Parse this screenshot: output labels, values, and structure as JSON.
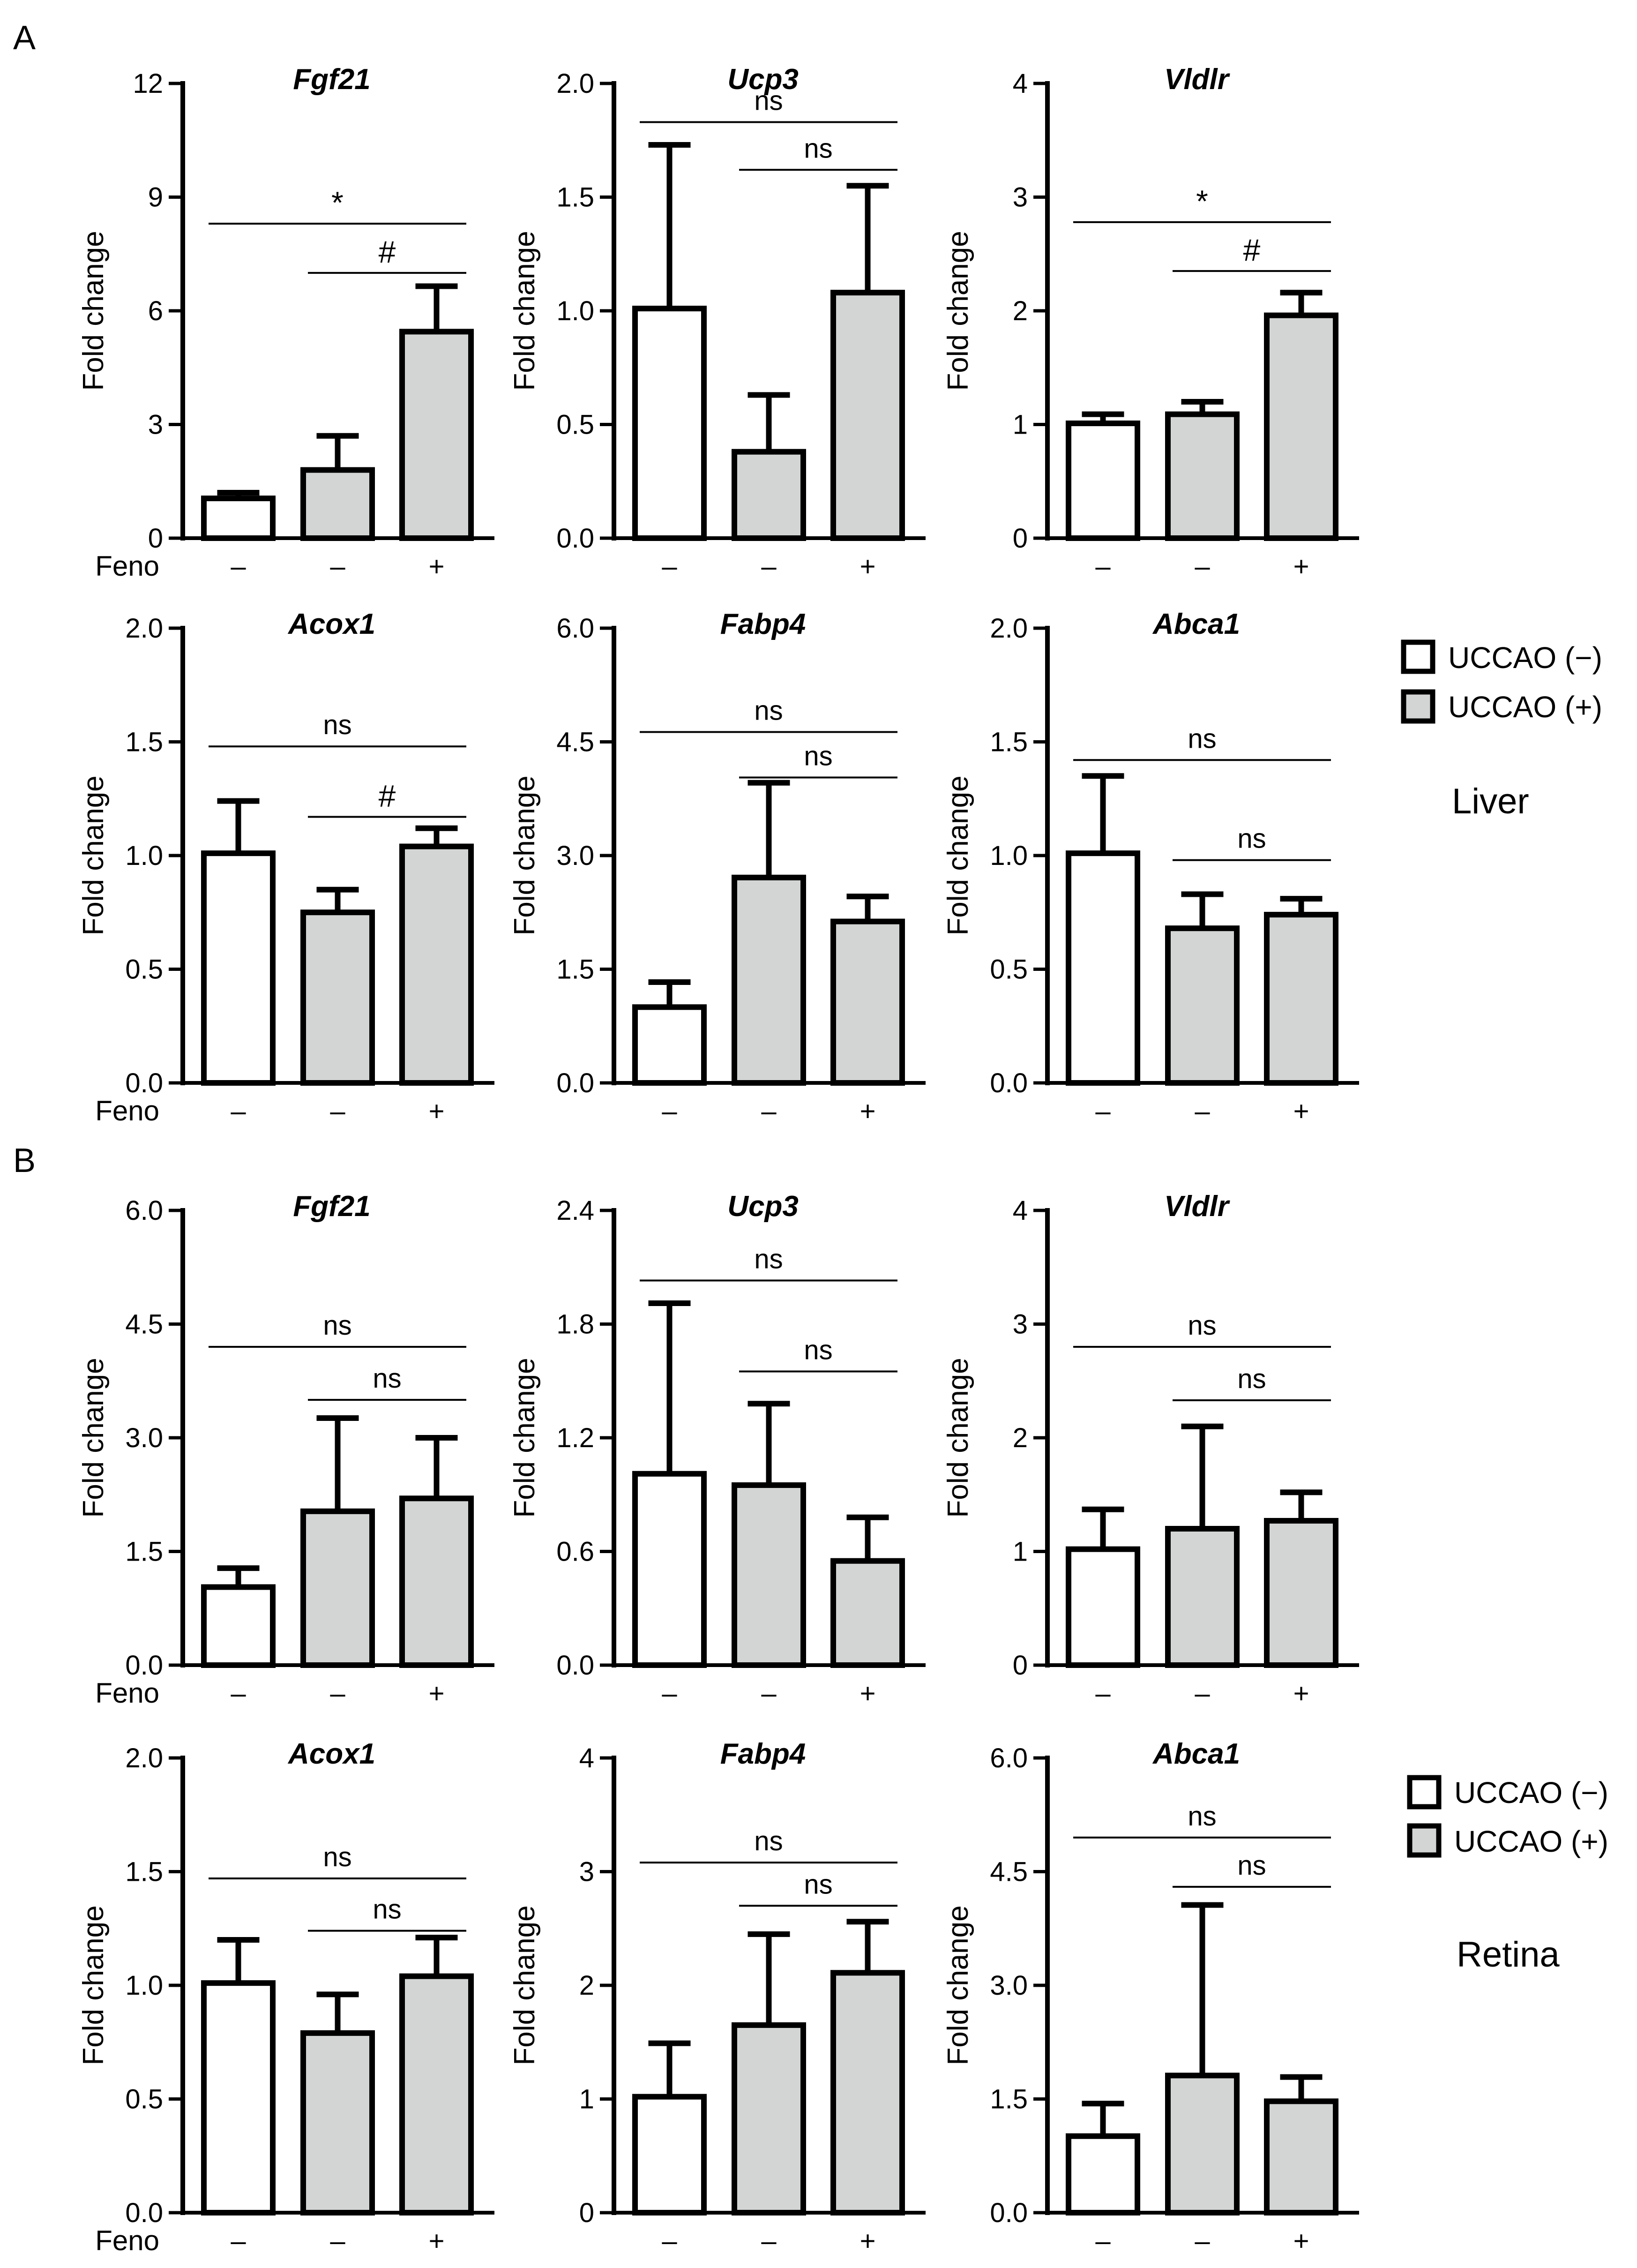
{
  "panel_labels": [
    "A",
    "B"
  ],
  "row_label": "Feno",
  "treatment_symbols": [
    "–",
    "–",
    "+"
  ],
  "colors": {
    "uccao_neg": "#ffffff",
    "uccao_pos": "#d3d5d5",
    "stroke": "#000000"
  },
  "legends": [
    {
      "tissue": "Liver",
      "entries": [
        "UCCAO (−)",
        "UCCAO (+)"
      ]
    },
    {
      "tissue": "Retina",
      "entries": [
        "UCCAO (−)",
        "UCCAO (+)"
      ]
    }
  ],
  "chart_data": [
    {
      "type": "bar",
      "section": "A",
      "tissue": "Liver",
      "title": "Fgf21",
      "ylabel": "Fold change",
      "ylim": [
        0,
        12
      ],
      "yticks": [
        0,
        3,
        6,
        9,
        12
      ],
      "ytick_labels": [
        "0",
        "3",
        "6",
        "9",
        "12"
      ],
      "categories": [
        "UCCAO(-) Feno-",
        "UCCAO(+) Feno-",
        "UCCAO(+) Feno+"
      ],
      "values": [
        1.05,
        1.8,
        5.45
      ],
      "errors": [
        0.15,
        0.9,
        1.2
      ],
      "feno_row_label": true,
      "annotations": [
        {
          "from": 0,
          "to": 2,
          "text": "*",
          "level": 8.3
        },
        {
          "from": 1,
          "to": 2,
          "text": "#",
          "level": 7.0
        }
      ]
    },
    {
      "type": "bar",
      "section": "A",
      "tissue": "Liver",
      "title": "Ucp3",
      "ylabel": "Fold change",
      "ylim": [
        0,
        2.0
      ],
      "yticks": [
        0,
        0.5,
        1.0,
        1.5,
        2.0
      ],
      "ytick_labels": [
        "0.0",
        "0.5",
        "1.0",
        "1.5",
        "2.0"
      ],
      "categories": [
        "UCCAO(-) Feno-",
        "UCCAO(+) Feno-",
        "UCCAO(+) Feno+"
      ],
      "values": [
        1.01,
        0.38,
        1.08
      ],
      "errors": [
        0.72,
        0.25,
        0.47
      ],
      "feno_row_label": false,
      "annotations": [
        {
          "from": 0,
          "to": 2,
          "text": "ns",
          "level": 1.83
        },
        {
          "from": 1,
          "to": 2,
          "text": "ns",
          "level": 1.62
        }
      ]
    },
    {
      "type": "bar",
      "section": "A",
      "tissue": "Liver",
      "title": "Vldlr",
      "ylabel": "Fold change",
      "ylim": [
        0,
        4
      ],
      "yticks": [
        0,
        1,
        2,
        3,
        4
      ],
      "ytick_labels": [
        "0",
        "1",
        "2",
        "3",
        "4"
      ],
      "categories": [
        "UCCAO(-) Feno-",
        "UCCAO(+) Feno-",
        "UCCAO(+) Feno+"
      ],
      "values": [
        1.01,
        1.09,
        1.96
      ],
      "errors": [
        0.08,
        0.11,
        0.2
      ],
      "feno_row_label": false,
      "annotations": [
        {
          "from": 0,
          "to": 2,
          "text": "*",
          "level": 2.78
        },
        {
          "from": 1,
          "to": 2,
          "text": "#",
          "level": 2.35
        }
      ]
    },
    {
      "type": "bar",
      "section": "A",
      "tissue": "Liver",
      "title": "Acox1",
      "ylabel": "Fold change",
      "ylim": [
        0,
        2.0
      ],
      "yticks": [
        0,
        0.5,
        1.0,
        1.5,
        2.0
      ],
      "ytick_labels": [
        "0.0",
        "0.5",
        "1.0",
        "1.5",
        "2.0"
      ],
      "categories": [
        "UCCAO(-) Feno-",
        "UCCAO(+) Feno-",
        "UCCAO(+) Feno+"
      ],
      "values": [
        1.01,
        0.75,
        1.04
      ],
      "errors": [
        0.23,
        0.1,
        0.08
      ],
      "feno_row_label": true,
      "annotations": [
        {
          "from": 0,
          "to": 2,
          "text": "ns",
          "level": 1.48
        },
        {
          "from": 1,
          "to": 2,
          "text": "#",
          "level": 1.17
        }
      ]
    },
    {
      "type": "bar",
      "section": "A",
      "tissue": "Liver",
      "title": "Fabp4",
      "ylabel": "Fold change",
      "ylim": [
        0,
        6.0
      ],
      "yticks": [
        0,
        1.5,
        3.0,
        4.5,
        6.0
      ],
      "ytick_labels": [
        "0.0",
        "1.5",
        "3.0",
        "4.5",
        "6.0"
      ],
      "categories": [
        "UCCAO(-) Feno-",
        "UCCAO(+) Feno-",
        "UCCAO(+) Feno+"
      ],
      "values": [
        1.0,
        2.71,
        2.13
      ],
      "errors": [
        0.33,
        1.25,
        0.33
      ],
      "feno_row_label": false,
      "annotations": [
        {
          "from": 0,
          "to": 2,
          "text": "ns",
          "level": 4.63
        },
        {
          "from": 1,
          "to": 2,
          "text": "ns",
          "level": 4.03
        }
      ]
    },
    {
      "type": "bar",
      "section": "A",
      "tissue": "Liver",
      "title": "Abca1",
      "ylabel": "Fold change",
      "ylim": [
        0,
        2.0
      ],
      "yticks": [
        0,
        0.5,
        1.0,
        1.5,
        2.0
      ],
      "ytick_labels": [
        "0.0",
        "0.5",
        "1.0",
        "1.5",
        "2.0"
      ],
      "categories": [
        "UCCAO(-) Feno-",
        "UCCAO(+) Feno-",
        "UCCAO(+) Feno+"
      ],
      "values": [
        1.01,
        0.68,
        0.74
      ],
      "errors": [
        0.34,
        0.15,
        0.07
      ],
      "feno_row_label": false,
      "annotations": [
        {
          "from": 0,
          "to": 2,
          "text": "ns",
          "level": 1.42
        },
        {
          "from": 1,
          "to": 2,
          "text": "ns",
          "level": 0.98
        }
      ]
    },
    {
      "type": "bar",
      "section": "B",
      "tissue": "Retina",
      "title": "Fgf21",
      "ylabel": "Fold change",
      "ylim": [
        0,
        6.0
      ],
      "yticks": [
        0,
        1.5,
        3.0,
        4.5,
        6.0
      ],
      "ytick_labels": [
        "0.0",
        "1.5",
        "3.0",
        "4.5",
        "6.0"
      ],
      "categories": [
        "UCCAO(-) Feno-",
        "UCCAO(+) Feno-",
        "UCCAO(+) Feno+"
      ],
      "values": [
        1.03,
        2.03,
        2.2
      ],
      "errors": [
        0.25,
        1.23,
        0.8
      ],
      "feno_row_label": true,
      "annotations": [
        {
          "from": 0,
          "to": 2,
          "text": "ns",
          "level": 4.2
        },
        {
          "from": 1,
          "to": 2,
          "text": "ns",
          "level": 3.5
        }
      ]
    },
    {
      "type": "bar",
      "section": "B",
      "tissue": "Retina",
      "title": "Ucp3",
      "ylabel": "Fold change",
      "ylim": [
        0,
        2.4
      ],
      "yticks": [
        0,
        0.6,
        1.2,
        1.8,
        2.4
      ],
      "ytick_labels": [
        "0.0",
        "0.6",
        "1.2",
        "1.8",
        "2.4"
      ],
      "categories": [
        "UCCAO(-) Feno-",
        "UCCAO(+) Feno-",
        "UCCAO(+) Feno+"
      ],
      "values": [
        1.01,
        0.95,
        0.55
      ],
      "errors": [
        0.9,
        0.43,
        0.23
      ],
      "feno_row_label": false,
      "annotations": [
        {
          "from": 0,
          "to": 2,
          "text": "ns",
          "level": 2.03
        },
        {
          "from": 1,
          "to": 2,
          "text": "ns",
          "level": 1.55
        }
      ]
    },
    {
      "type": "bar",
      "section": "B",
      "tissue": "Retina",
      "title": "Vldlr",
      "ylabel": "Fold change",
      "ylim": [
        0,
        4
      ],
      "yticks": [
        0,
        1,
        2,
        3,
        4
      ],
      "ytick_labels": [
        "0",
        "1",
        "2",
        "3",
        "4"
      ],
      "categories": [
        "UCCAO(-) Feno-",
        "UCCAO(+) Feno-",
        "UCCAO(+) Feno+"
      ],
      "values": [
        1.02,
        1.2,
        1.27
      ],
      "errors": [
        0.35,
        0.9,
        0.25
      ],
      "feno_row_label": false,
      "annotations": [
        {
          "from": 0,
          "to": 2,
          "text": "ns",
          "level": 2.8
        },
        {
          "from": 1,
          "to": 2,
          "text": "ns",
          "level": 2.33
        }
      ]
    },
    {
      "type": "bar",
      "section": "B",
      "tissue": "Retina",
      "title": "Acox1",
      "ylabel": "Fold change",
      "ylim": [
        0,
        2.0
      ],
      "yticks": [
        0,
        0.5,
        1.0,
        1.5,
        2.0
      ],
      "ytick_labels": [
        "0.0",
        "0.5",
        "1.0",
        "1.5",
        "2.0"
      ],
      "categories": [
        "UCCAO(-) Feno-",
        "UCCAO(+) Feno-",
        "UCCAO(+) Feno+"
      ],
      "values": [
        1.01,
        0.79,
        1.04
      ],
      "errors": [
        0.19,
        0.17,
        0.17
      ],
      "feno_row_label": true,
      "annotations": [
        {
          "from": 0,
          "to": 2,
          "text": "ns",
          "level": 1.47
        },
        {
          "from": 1,
          "to": 2,
          "text": "ns",
          "level": 1.24
        }
      ]
    },
    {
      "type": "bar",
      "section": "B",
      "tissue": "Retina",
      "title": "Fabp4",
      "ylabel": "Fold change",
      "ylim": [
        0,
        4
      ],
      "yticks": [
        0,
        1,
        2,
        3,
        4
      ],
      "ytick_labels": [
        "0",
        "1",
        "2",
        "3",
        "4"
      ],
      "categories": [
        "UCCAO(-) Feno-",
        "UCCAO(+) Feno-",
        "UCCAO(+) Feno+"
      ],
      "values": [
        1.02,
        1.65,
        2.11
      ],
      "errors": [
        0.47,
        0.8,
        0.45
      ],
      "feno_row_label": false,
      "annotations": [
        {
          "from": 0,
          "to": 2,
          "text": "ns",
          "level": 3.08
        },
        {
          "from": 1,
          "to": 2,
          "text": "ns",
          "level": 2.7
        }
      ]
    },
    {
      "type": "bar",
      "section": "B",
      "tissue": "Retina",
      "title": "Abca1",
      "ylabel": "Fold change",
      "ylim": [
        0,
        6.0
      ],
      "yticks": [
        0,
        1.5,
        3.0,
        4.5,
        6.0
      ],
      "ytick_labels": [
        "0.0",
        "1.5",
        "3.0",
        "4.5",
        "6.0"
      ],
      "categories": [
        "UCCAO(-) Feno-",
        "UCCAO(+) Feno-",
        "UCCAO(+) Feno+"
      ],
      "values": [
        1.01,
        1.81,
        1.47
      ],
      "errors": [
        0.43,
        2.25,
        0.32
      ],
      "feno_row_label": false,
      "annotations": [
        {
          "from": 0,
          "to": 2,
          "text": "ns",
          "level": 4.95
        },
        {
          "from": 1,
          "to": 2,
          "text": "ns",
          "level": 4.3
        }
      ]
    }
  ]
}
